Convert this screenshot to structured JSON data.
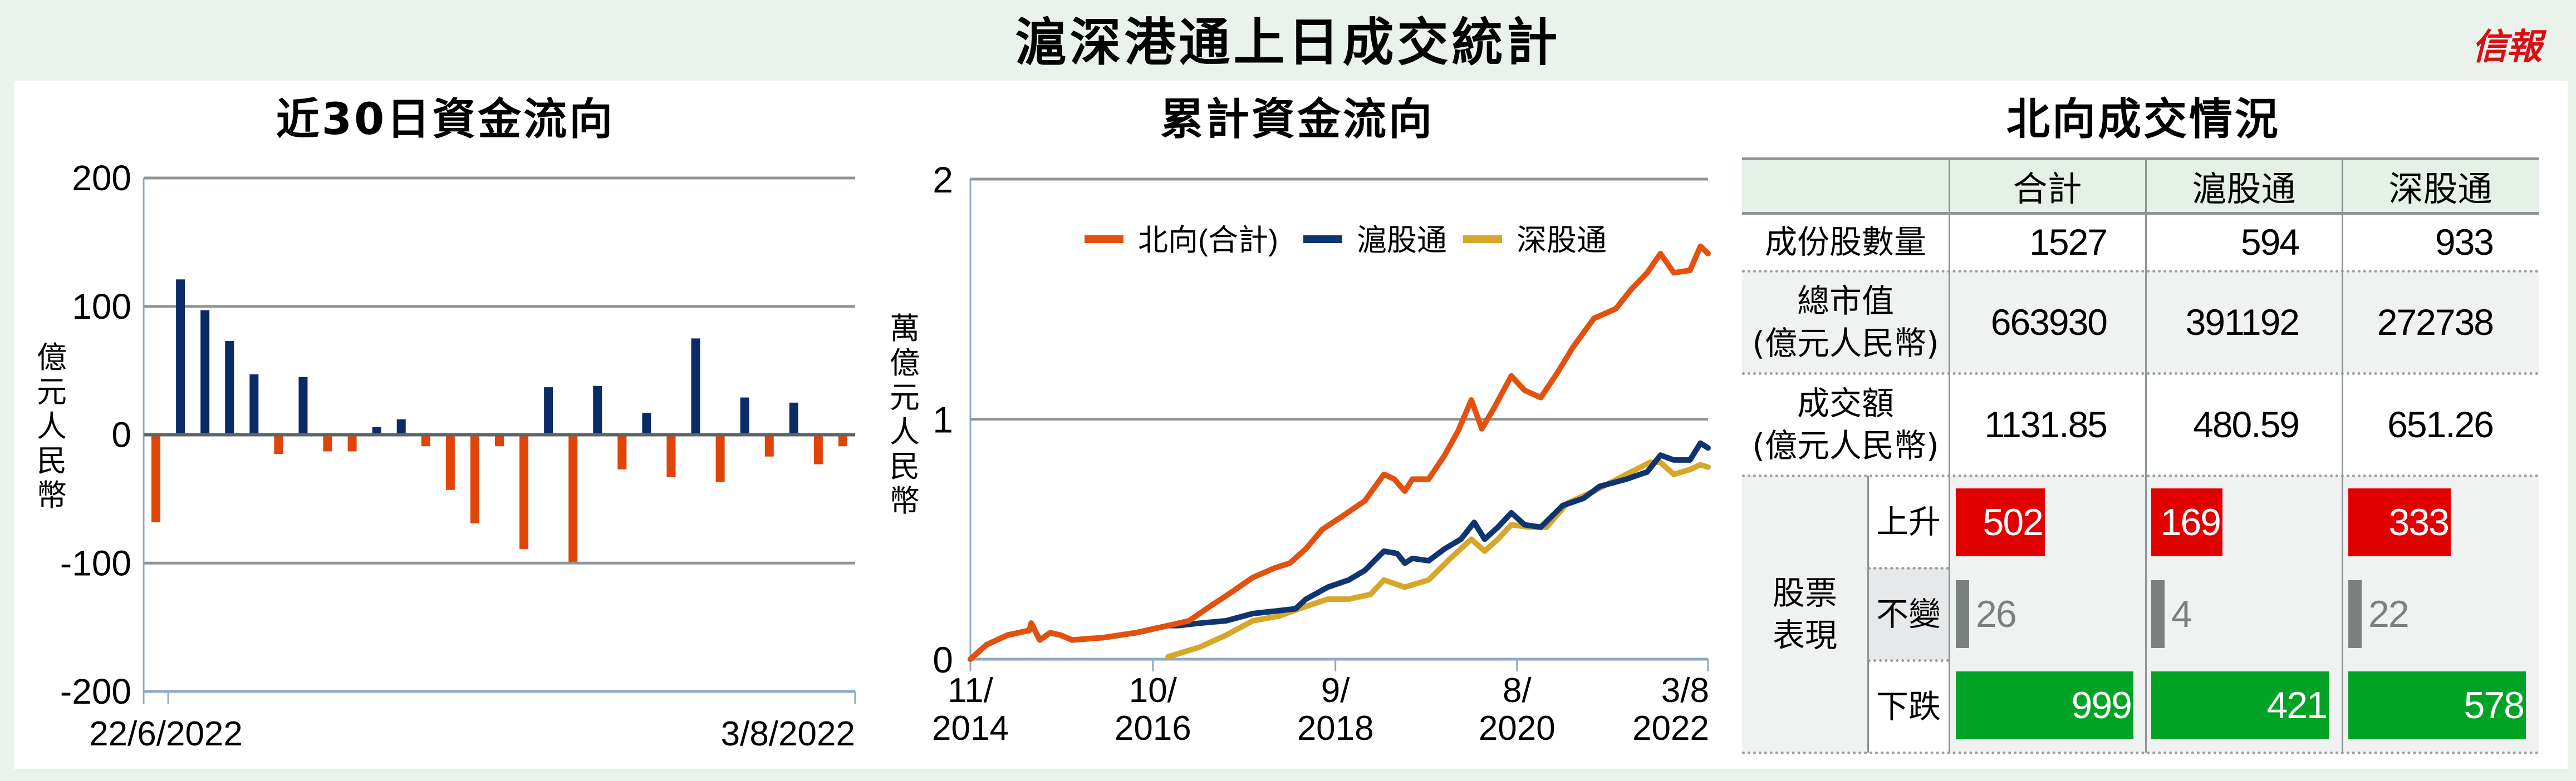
{
  "header": {
    "title": "滬深港通上日成交統計",
    "logo": "信報"
  },
  "colors": {
    "background": "#e9f3ec",
    "north_total": "#e4500e",
    "shanghai": "#0f3570",
    "shenzhen": "#d6a72b",
    "inflow_bar": "#0b2b66",
    "outflow_bar": "#e04406",
    "up": "#e00000",
    "down": "#00a325",
    "flat": "#7b8081",
    "logo": "#d90f16"
  },
  "chart_data": [
    {
      "type": "bar",
      "title": "近30日資金流向",
      "ylabel": "億元人民幣",
      "ylim": [
        -200,
        200
      ],
      "yticks": [
        "200",
        "100",
        "0",
        "-100",
        "-200"
      ],
      "ytick_values": [
        200,
        100,
        0,
        -100,
        -200
      ],
      "x_start_label": "22/6/2022",
      "x_end_label": "3/8/2022",
      "grid": true,
      "values": [
        -68,
        121,
        97,
        73,
        47,
        -15,
        45,
        -13,
        -13,
        6,
        12,
        -9,
        -43,
        -69,
        -9,
        -89,
        37,
        -99,
        38,
        -27,
        17,
        -33,
        75,
        -37,
        29,
        -17,
        25,
        -23,
        -9
      ]
    },
    {
      "type": "line",
      "title": "累計資金流向",
      "ylabel": "萬億元人民幣",
      "ylim": [
        0,
        2
      ],
      "yticks": [
        "2",
        "1",
        "0"
      ],
      "ytick_values": [
        2,
        1,
        0
      ],
      "xlim": [
        2014.83,
        2022.59
      ],
      "xticks": [
        {
          "value": 2014.83,
          "line1": "11/",
          "line2": "2014"
        },
        {
          "value": 2016.75,
          "line1": "10/",
          "line2": "2016"
        },
        {
          "value": 2018.67,
          "line1": "9/",
          "line2": "2018"
        },
        {
          "value": 2020.58,
          "line1": "8/",
          "line2": "2020"
        },
        {
          "value": 2022.59,
          "line1": "3/8",
          "line2": "2022"
        }
      ],
      "legend_position": "top",
      "grid": true,
      "series": [
        {
          "name": "北向(合計)",
          "color_key": "north_total",
          "x": [
            2014.83,
            2015.0,
            2015.22,
            2015.45,
            2015.47,
            2015.56,
            2015.67,
            2015.78,
            2015.9,
            2016.23,
            2016.57,
            2016.91,
            2017.13,
            2017.35,
            2017.58,
            2017.8,
            2018.03,
            2018.19,
            2018.36,
            2018.53,
            2018.76,
            2018.98,
            2019.18,
            2019.29,
            2019.4,
            2019.48,
            2019.65,
            2019.82,
            2019.96,
            2020.1,
            2020.21,
            2020.33,
            2020.52,
            2020.66,
            2020.83,
            2021.0,
            2021.17,
            2021.39,
            2021.62,
            2021.78,
            2021.95,
            2022.09,
            2022.23,
            2022.4,
            2022.51,
            2022.59
          ],
          "y": [
            0.0,
            0.06,
            0.1,
            0.12,
            0.15,
            0.08,
            0.11,
            0.1,
            0.08,
            0.09,
            0.11,
            0.14,
            0.16,
            0.22,
            0.28,
            0.34,
            0.38,
            0.4,
            0.46,
            0.54,
            0.6,
            0.66,
            0.77,
            0.75,
            0.7,
            0.75,
            0.75,
            0.85,
            0.95,
            1.08,
            0.96,
            1.04,
            1.18,
            1.12,
            1.09,
            1.19,
            1.3,
            1.42,
            1.46,
            1.54,
            1.61,
            1.69,
            1.61,
            1.62,
            1.72,
            1.69
          ]
        },
        {
          "name": "滬股通",
          "color_key": "shanghai",
          "x": [
            2014.83,
            2015.0,
            2015.22,
            2015.45,
            2015.47,
            2015.56,
            2015.67,
            2015.78,
            2015.9,
            2016.23,
            2016.57,
            2016.91,
            2017.02,
            2017.24,
            2017.52,
            2017.8,
            2018.03,
            2018.25,
            2018.36,
            2018.59,
            2018.81,
            2018.98,
            2019.18,
            2019.32,
            2019.4,
            2019.48,
            2019.65,
            2019.82,
            2019.99,
            2020.13,
            2020.24,
            2020.38,
            2020.52,
            2020.66,
            2020.83,
            2021.06,
            2021.28,
            2021.45,
            2021.73,
            2021.95,
            2022.09,
            2022.23,
            2022.4,
            2022.51,
            2022.59
          ],
          "y": [
            0.0,
            0.06,
            0.1,
            0.12,
            0.15,
            0.08,
            0.11,
            0.1,
            0.08,
            0.09,
            0.11,
            0.14,
            0.14,
            0.15,
            0.16,
            0.19,
            0.2,
            0.21,
            0.25,
            0.3,
            0.33,
            0.37,
            0.45,
            0.44,
            0.4,
            0.42,
            0.41,
            0.46,
            0.5,
            0.57,
            0.5,
            0.55,
            0.61,
            0.56,
            0.55,
            0.64,
            0.67,
            0.72,
            0.75,
            0.78,
            0.85,
            0.83,
            0.83,
            0.9,
            0.88
          ]
        },
        {
          "name": "深股通",
          "color_key": "shenzhen",
          "x": [
            2016.91,
            2017.24,
            2017.52,
            2017.8,
            2018.08,
            2018.36,
            2018.59,
            2018.81,
            2019.04,
            2019.18,
            2019.4,
            2019.65,
            2019.88,
            2020.1,
            2020.24,
            2020.38,
            2020.52,
            2020.72,
            2020.89,
            2021.11,
            2021.39,
            2021.73,
            2021.98,
            2022.09,
            2022.23,
            2022.4,
            2022.51,
            2022.59
          ],
          "y": [
            0.01,
            0.05,
            0.1,
            0.16,
            0.18,
            0.22,
            0.25,
            0.25,
            0.27,
            0.33,
            0.3,
            0.33,
            0.42,
            0.5,
            0.45,
            0.5,
            0.56,
            0.55,
            0.55,
            0.65,
            0.7,
            0.77,
            0.82,
            0.82,
            0.77,
            0.79,
            0.81,
            0.8
          ]
        }
      ]
    },
    {
      "type": "table",
      "title": "北向成交情況",
      "columns": [
        "合計",
        "滬股通",
        "深股通"
      ],
      "rows": [
        {
          "label": "成份股數量",
          "values": [
            "1527",
            "594",
            "933"
          ]
        },
        {
          "label": "總市值",
          "sublabel": "(億元人民幣)",
          "values": [
            "663930",
            "391192",
            "272738"
          ]
        },
        {
          "label": "成交額",
          "sublabel": "(億元人民幣)",
          "values": [
            "1131.85",
            "480.59",
            "651.26"
          ]
        }
      ],
      "performance": {
        "label_line1": "股票",
        "label_line2": "表現",
        "up": {
          "label": "上升",
          "values": [
            502,
            169,
            333
          ]
        },
        "flat": {
          "label": "不變",
          "values": [
            26,
            4,
            22
          ]
        },
        "down": {
          "label": "下跌",
          "values": [
            999,
            421,
            578
          ]
        }
      }
    }
  ]
}
